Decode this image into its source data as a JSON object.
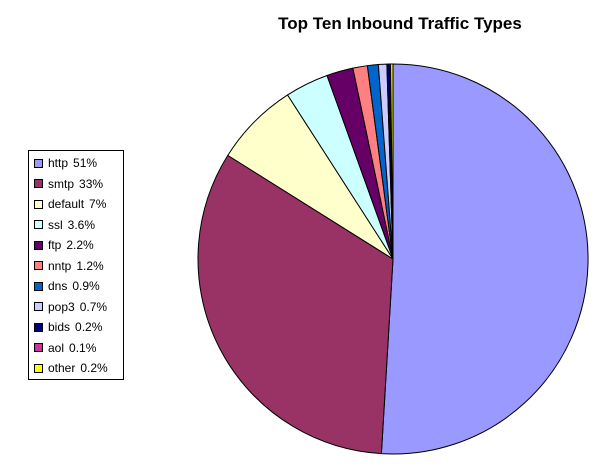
{
  "chart_data": {
    "type": "pie",
    "title": "Top Ten Inbound Traffic Types",
    "legend_position": "left",
    "slices": [
      {
        "label": "http",
        "display_value": "51%",
        "value": 51,
        "color": "#9999ff"
      },
      {
        "label": "smtp",
        "display_value": "33%",
        "value": 33,
        "color": "#993366"
      },
      {
        "label": "default",
        "display_value": "7%",
        "value": 7,
        "color": "#ffffcc"
      },
      {
        "label": "ssl",
        "display_value": "3.6%",
        "value": 3.6,
        "color": "#ccffff"
      },
      {
        "label": "ftp",
        "display_value": "2.2%",
        "value": 2.2,
        "color": "#660066"
      },
      {
        "label": "nntp",
        "display_value": "1.2%",
        "value": 1.2,
        "color": "#ff8080"
      },
      {
        "label": "dns",
        "display_value": "0.9%",
        "value": 0.9,
        "color": "#0066cc"
      },
      {
        "label": "pop3",
        "display_value": "0.7%",
        "value": 0.7,
        "color": "#ccccff"
      },
      {
        "label": "bids",
        "display_value": "0.2%",
        "value": 0.2,
        "color": "#000080"
      },
      {
        "label": "aol",
        "display_value": "0.1%",
        "value": 0.1,
        "color": "#cc3399"
      },
      {
        "label": "other",
        "display_value": "0.2%",
        "value": 0.2,
        "color": "#ffff00"
      }
    ]
  }
}
